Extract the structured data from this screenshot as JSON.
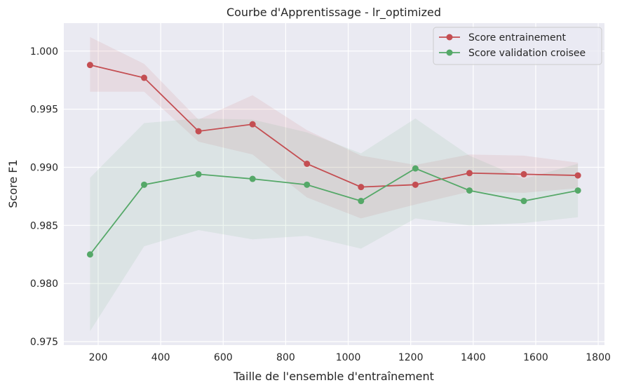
{
  "chart_data": {
    "type": "line",
    "title": "Courbe d'Apprentissage - lr_optimized",
    "xlabel": "Taille de l'ensemble d'entraînement",
    "ylabel": "Score F1",
    "xlim": [
      90,
      1820
    ],
    "ylim": [
      0.9747,
      1.0024
    ],
    "xticks": [
      200,
      400,
      600,
      800,
      1000,
      1200,
      1400,
      1600,
      1800
    ],
    "xtick_labels": [
      "200",
      "400",
      "600",
      "800",
      "1000",
      "1200",
      "1400",
      "1600",
      "1800"
    ],
    "yticks": [
      0.975,
      0.98,
      0.985,
      0.99,
      0.995,
      1.0
    ],
    "ytick_labels": [
      "0.975",
      "0.980",
      "0.985",
      "0.990",
      "0.995",
      "1.000"
    ],
    "grid": true,
    "legend_position": "top-right",
    "x": [
      174,
      347,
      521,
      694,
      868,
      1041,
      1215,
      1388,
      1562,
      1735
    ],
    "series": [
      {
        "name": "Score entrainement",
        "color": "#c44e52",
        "values": [
          0.9988,
          0.9977,
          0.9931,
          0.9937,
          0.9903,
          0.9883,
          0.9885,
          0.9895,
          0.9894,
          0.9893
        ],
        "upper": [
          1.0012,
          0.9989,
          0.9941,
          0.9962,
          0.9932,
          0.991,
          0.9902,
          0.9911,
          0.991,
          0.9904
        ],
        "lower": [
          0.9965,
          0.9965,
          0.9922,
          0.9911,
          0.9874,
          0.9856,
          0.9868,
          0.9879,
          0.9878,
          0.9882
        ]
      },
      {
        "name": "Score validation croisee",
        "color": "#55a868",
        "values": [
          0.9825,
          0.9885,
          0.9894,
          0.989,
          0.9885,
          0.9871,
          0.9899,
          0.988,
          0.9871,
          0.988
        ],
        "upper": [
          0.9891,
          0.9938,
          0.9942,
          0.9941,
          0.993,
          0.9912,
          0.9942,
          0.991,
          0.989,
          0.9903
        ],
        "lower": [
          0.9759,
          0.9832,
          0.9846,
          0.9838,
          0.9841,
          0.983,
          0.9856,
          0.985,
          0.9852,
          0.9857
        ]
      }
    ]
  }
}
